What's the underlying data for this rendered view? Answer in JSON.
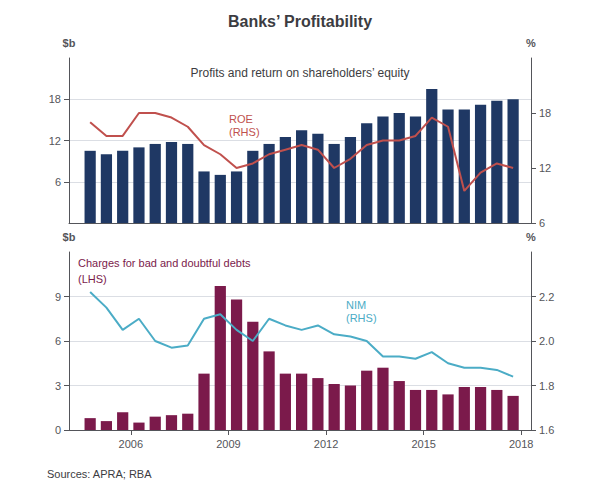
{
  "title": "Banks’ Profitability",
  "source": "Sources: APRA; RBA",
  "chart_data": [
    {
      "type": "bar",
      "subtitle": "Profits and return on shareholders’ equity",
      "ylabel": "$b",
      "y2label": "%",
      "x": [
        2004.75,
        2005.25,
        2005.75,
        2006.25,
        2006.75,
        2007.25,
        2007.75,
        2008.25,
        2008.75,
        2009.25,
        2009.75,
        2010.25,
        2010.75,
        2011.25,
        2011.75,
        2012.25,
        2012.75,
        2013.25,
        2013.75,
        2014.25,
        2014.75,
        2015.25,
        2015.75,
        2016.25,
        2016.75,
        2017.25,
        2017.75
      ],
      "xlim": [
        2004.1,
        2018.3
      ],
      "xticks": [],
      "ylim": [
        0,
        24
      ],
      "yticks": [
        6,
        12,
        18
      ],
      "y2lim": [
        6,
        24
      ],
      "y2ticks": [
        6,
        12,
        18
      ],
      "grid": true,
      "series": [
        {
          "type": "bar",
          "color": "#1f3864",
          "values": [
            10.5,
            10.0,
            10.5,
            11.0,
            11.5,
            11.8,
            11.5,
            7.5,
            7.0,
            7.5,
            10.5,
            11.5,
            12.5,
            13.5,
            13.0,
            11.5,
            12.5,
            14.5,
            15.5,
            16.0,
            15.5,
            19.5,
            16.5,
            16.5,
            17.2,
            17.8,
            18.0
          ]
        },
        {
          "type": "line",
          "axis": "y2",
          "color": "#c0504d",
          "values": [
            17.0,
            15.5,
            15.5,
            18.0,
            18.0,
            17.5,
            16.5,
            14.5,
            13.5,
            12.0,
            12.5,
            13.5,
            14.0,
            14.5,
            14.0,
            12.0,
            13.0,
            14.5,
            15.0,
            15.0,
            15.5,
            17.5,
            16.5,
            9.5,
            11.5,
            12.5,
            12.0
          ]
        }
      ],
      "annotations": [
        {
          "text": "ROE\n(RHS)",
          "color": "#c0504d"
        }
      ]
    },
    {
      "type": "bar",
      "ylabel": "$b",
      "y2label": "%",
      "x": [
        2004.75,
        2005.25,
        2005.75,
        2006.25,
        2006.75,
        2007.25,
        2007.75,
        2008.25,
        2008.75,
        2009.25,
        2009.75,
        2010.25,
        2010.75,
        2011.25,
        2011.75,
        2012.25,
        2012.75,
        2013.25,
        2013.75,
        2014.25,
        2014.75,
        2015.25,
        2015.75,
        2016.25,
        2016.75,
        2017.25,
        2017.75
      ],
      "xlim": [
        2004.1,
        2018.3
      ],
      "xticks": [
        2006,
        2009,
        2012,
        2015,
        2018
      ],
      "ylim": [
        0,
        12
      ],
      "yticks": [
        0,
        3,
        6,
        9
      ],
      "y2lim": [
        1.6,
        2.4
      ],
      "y2ticks": [
        1.6,
        1.8,
        {
          "value": 2.0,
          "label": "2.0"
        },
        2.2
      ],
      "grid": true,
      "series": [
        {
          "type": "bar",
          "color": "#7b1a4b",
          "values": [
            0.8,
            0.6,
            1.2,
            0.5,
            0.9,
            1.0,
            1.1,
            3.8,
            9.7,
            8.8,
            7.3,
            5.3,
            3.8,
            3.8,
            3.5,
            3.1,
            3.0,
            4.0,
            4.2,
            3.3,
            2.7,
            2.7,
            2.4,
            2.9,
            2.9,
            2.7,
            2.3
          ]
        },
        {
          "type": "line",
          "axis": "y2",
          "color": "#4bacc6",
          "values": [
            2.22,
            2.15,
            2.05,
            2.1,
            2.0,
            1.97,
            1.98,
            2.1,
            2.12,
            2.05,
            2.0,
            2.1,
            2.07,
            2.05,
            2.07,
            2.03,
            2.02,
            2.0,
            1.93,
            1.93,
            1.92,
            1.95,
            1.9,
            1.88,
            1.88,
            1.87,
            1.84
          ]
        }
      ],
      "annotations": [
        {
          "text": "Charges for bad and doubtful debts",
          "color": "#7b1a4b"
        },
        {
          "text": "(LHS)",
          "color": "#7b1a4b"
        },
        {
          "text": "NIM\n(RHS)",
          "color": "#4bacc6"
        }
      ]
    }
  ]
}
